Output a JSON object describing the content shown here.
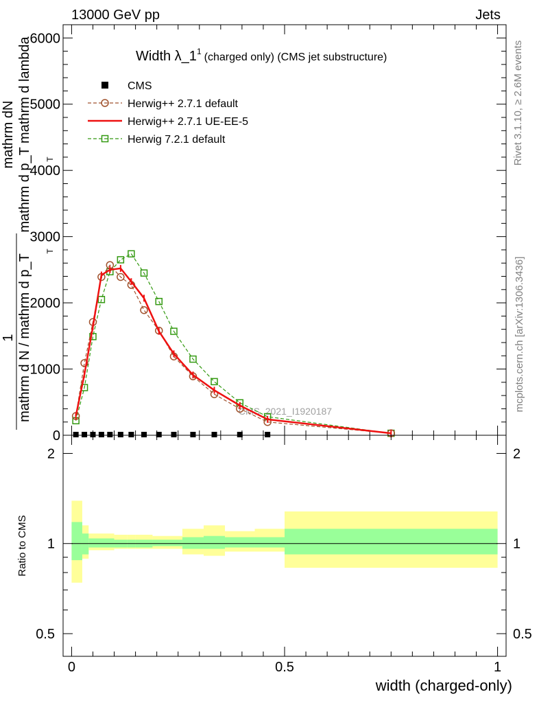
{
  "header": {
    "left": "13000 GeV pp",
    "right": "Jets"
  },
  "side_texts": {
    "rivet": "Rivet 3.1.10, ≥ 2.6M events",
    "mcplots": "mcplots.cern.ch [arXiv:1306.3436]"
  },
  "chart_data": [
    {
      "type": "line",
      "title": "Width λ_1",
      "title_sup": "1",
      "subtitle": "(charged only) (CMS jet substructure)",
      "ylabel_numerator": "mathrm dN",
      "ylabel_numerator2": "mathrm d p_T mathrm d lambda",
      "ylabel_subscript": "T",
      "ylabel_fraction_one": "1",
      "ylabel_denominator": "mathrm d N / mathrm d p_T",
      "watermark": "CMS_2021_I1920187",
      "xlim": [
        -0.02,
        1.02
      ],
      "ylim": [
        0,
        6200
      ],
      "ytick_values": [
        0,
        1000,
        2000,
        3000,
        4000,
        5000,
        6000
      ],
      "ytick_labels": [
        "0",
        "1000",
        "2000",
        "3000",
        "4000",
        "5000",
        "6000"
      ],
      "legend": [
        {
          "label": "CMS",
          "key": "cms"
        },
        {
          "label": "Herwig++ 2.7.1 default",
          "key": "hw271_default"
        },
        {
          "label": "Herwig++ 2.7.1 UE-EE-5",
          "key": "hw271_ueee5"
        },
        {
          "label": "Herwig 7.2.1 default",
          "key": "hw721_default"
        }
      ],
      "series": [
        {
          "key": "cms",
          "name": "CMS",
          "style": "square-marker",
          "color": "#000000",
          "x": [
            0.01,
            0.03,
            0.05,
            0.07,
            0.09,
            0.115,
            0.14,
            0.17,
            0.205,
            0.24,
            0.285,
            0.335,
            0.395,
            0.46
          ],
          "y": [
            0,
            0,
            0,
            0,
            0,
            0,
            0,
            0,
            0,
            0,
            0,
            0,
            0,
            0
          ]
        },
        {
          "key": "hw271_default",
          "name": "Herwig++ 2.7.1 default",
          "style": "dashed-circle",
          "color": "#a0522d",
          "x": [
            0.01,
            0.03,
            0.05,
            0.07,
            0.09,
            0.115,
            0.14,
            0.17,
            0.205,
            0.24,
            0.285,
            0.335,
            0.395,
            0.46,
            0.75
          ],
          "y": [
            290,
            1090,
            1710,
            2390,
            2570,
            2390,
            2270,
            1890,
            1580,
            1190,
            890,
            620,
            400,
            200,
            30
          ]
        },
        {
          "key": "hw271_ueee5",
          "name": "Herwig++ 2.7.1 UE-EE-5",
          "style": "solid",
          "color": "#ee1111",
          "x": [
            0.01,
            0.03,
            0.05,
            0.07,
            0.09,
            0.115,
            0.14,
            0.17,
            0.205,
            0.24,
            0.285,
            0.335,
            0.395,
            0.46,
            0.75
          ],
          "y": [
            290,
            920,
            1640,
            2420,
            2500,
            2520,
            2320,
            2070,
            1570,
            1230,
            910,
            680,
            450,
            240,
            30
          ]
        },
        {
          "key": "hw721_default",
          "name": "Herwig 7.2.1 default",
          "style": "dashed-open-square",
          "color": "#339911",
          "x": [
            0.01,
            0.03,
            0.05,
            0.07,
            0.09,
            0.115,
            0.14,
            0.17,
            0.205,
            0.24,
            0.285,
            0.335,
            0.395,
            0.46,
            0.75
          ],
          "y": [
            220,
            720,
            1490,
            2050,
            2470,
            2650,
            2740,
            2450,
            2020,
            1570,
            1150,
            810,
            490,
            280,
            30
          ]
        }
      ]
    },
    {
      "type": "area",
      "ylabel": "Ratio to CMS",
      "xlabel": "width (charged-only)",
      "xlim": [
        -0.02,
        1.02
      ],
      "ylim": [
        0.42,
        2.3
      ],
      "xtick_values": [
        0,
        0.5,
        1
      ],
      "xtick_labels": [
        "0",
        "0.5",
        "1"
      ],
      "ytick_values": [
        0.5,
        1,
        2
      ],
      "ytick_labels": [
        "0.5",
        "1",
        "2"
      ],
      "reference_line": 1,
      "bands": [
        {
          "x0": 0.0,
          "x1": 0.025,
          "stat_lo": 0.88,
          "stat_hi": 1.18,
          "tot_lo": 0.74,
          "tot_hi": 1.39
        },
        {
          "x0": 0.025,
          "x1": 0.04,
          "stat_lo": 0.92,
          "stat_hi": 1.08,
          "tot_lo": 0.89,
          "tot_hi": 1.15
        },
        {
          "x0": 0.04,
          "x1": 0.1,
          "stat_lo": 0.97,
          "stat_hi": 1.04,
          "tot_lo": 0.95,
          "tot_hi": 1.08
        },
        {
          "x0": 0.1,
          "x1": 0.13,
          "stat_lo": 0.97,
          "stat_hi": 1.03,
          "tot_lo": 0.96,
          "tot_hi": 1.07
        },
        {
          "x0": 0.13,
          "x1": 0.15,
          "stat_lo": 0.97,
          "stat_hi": 1.03,
          "tot_lo": 0.96,
          "tot_hi": 1.07
        },
        {
          "x0": 0.15,
          "x1": 0.19,
          "stat_lo": 0.97,
          "stat_hi": 1.03,
          "tot_lo": 0.96,
          "tot_hi": 1.07
        },
        {
          "x0": 0.19,
          "x1": 0.26,
          "stat_lo": 0.98,
          "stat_hi": 1.03,
          "tot_lo": 0.96,
          "tot_hi": 1.06
        },
        {
          "x0": 0.26,
          "x1": 0.31,
          "stat_lo": 0.96,
          "stat_hi": 1.05,
          "tot_lo": 0.92,
          "tot_hi": 1.12
        },
        {
          "x0": 0.31,
          "x1": 0.36,
          "stat_lo": 0.96,
          "stat_hi": 1.06,
          "tot_lo": 0.91,
          "tot_hi": 1.15
        },
        {
          "x0": 0.36,
          "x1": 0.43,
          "stat_lo": 0.97,
          "stat_hi": 1.05,
          "tot_lo": 0.94,
          "tot_hi": 1.1
        },
        {
          "x0": 0.43,
          "x1": 0.5,
          "stat_lo": 0.97,
          "stat_hi": 1.05,
          "tot_lo": 0.94,
          "tot_hi": 1.12
        },
        {
          "x0": 0.5,
          "x1": 1.0,
          "stat_lo": 0.92,
          "stat_hi": 1.12,
          "tot_lo": 0.83,
          "tot_hi": 1.28
        }
      ],
      "band_colors": {
        "stat": "#99ff99",
        "total": "#ffff99"
      }
    }
  ]
}
